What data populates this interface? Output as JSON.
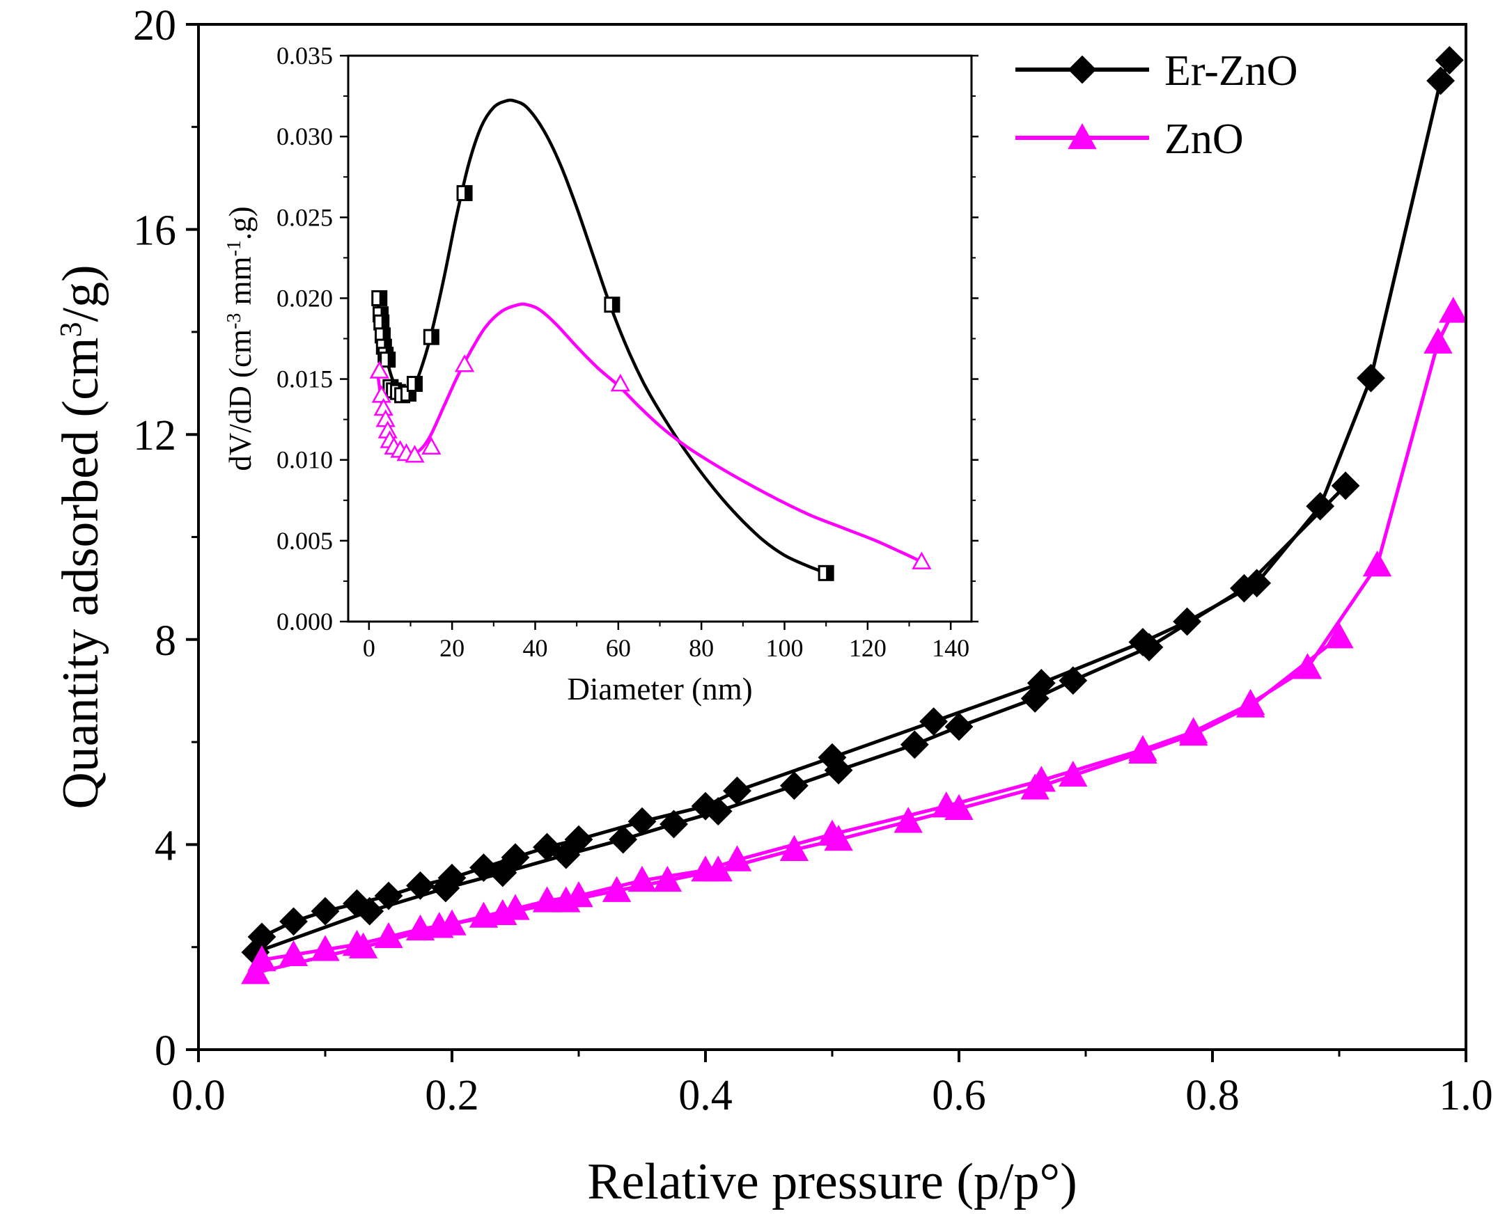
{
  "chart_data": [
    {
      "type": "line",
      "panel": "main",
      "title": "",
      "xlabel": "Relative pressure (p/p°)",
      "ylabel_parts": [
        "Quantity adsorbed (cm",
        "3",
        "/g)"
      ],
      "xlim": [
        0.0,
        1.0
      ],
      "ylim": [
        0,
        20
      ],
      "xticks": [
        0.0,
        0.2,
        0.4,
        0.6,
        0.8,
        1.0
      ],
      "xtick_labels": [
        "0.0",
        "0.2",
        "0.4",
        "0.6",
        "0.8",
        "1.0"
      ],
      "yticks": [
        0,
        4,
        8,
        12,
        16,
        20
      ],
      "ytick_labels": [
        "0",
        "4",
        "8",
        "12",
        "16",
        "20"
      ],
      "grid": false,
      "legend_position": "top-right",
      "series": [
        {
          "name": "Er-ZnO",
          "color": "#000000",
          "marker": "diamond",
          "branches": [
            {
              "x": [
                0.05,
                0.075,
                0.1,
                0.125,
                0.15,
                0.175,
                0.2,
                0.225,
                0.25,
                0.275,
                0.3,
                0.35,
                0.4,
                0.425,
                0.5,
                0.58,
                0.665,
                0.745,
                0.78,
                0.835,
                0.885,
                0.925,
                0.98,
                0.987
              ],
              "y": [
                2.2,
                2.5,
                2.7,
                2.85,
                3.0,
                3.2,
                3.35,
                3.55,
                3.75,
                3.95,
                4.1,
                4.45,
                4.75,
                5.05,
                5.7,
                6.4,
                7.15,
                7.95,
                8.35,
                9.1,
                10.6,
                13.1,
                18.9,
                19.3
              ]
            },
            {
              "x": [
                0.045,
                0.135,
                0.195,
                0.24,
                0.29,
                0.335,
                0.375,
                0.41,
                0.47,
                0.505,
                0.565,
                0.6,
                0.66,
                0.69,
                0.75,
                0.825,
                0.905
              ],
              "y": [
                1.9,
                2.7,
                3.15,
                3.45,
                3.8,
                4.1,
                4.4,
                4.65,
                5.15,
                5.45,
                5.95,
                6.3,
                6.85,
                7.2,
                7.85,
                9.0,
                11.0
              ]
            }
          ]
        },
        {
          "name": "ZnO",
          "color": "#ff00ff",
          "marker": "triangle",
          "branches": [
            {
              "x": [
                0.05,
                0.075,
                0.1,
                0.125,
                0.15,
                0.175,
                0.2,
                0.225,
                0.25,
                0.275,
                0.3,
                0.35,
                0.4,
                0.425,
                0.5,
                0.59,
                0.665,
                0.745,
                0.785,
                0.83,
                0.875,
                0.93,
                0.978,
                0.99
              ],
              "y": [
                1.75,
                1.85,
                1.95,
                2.05,
                2.2,
                2.35,
                2.45,
                2.6,
                2.75,
                2.9,
                3.0,
                3.3,
                3.5,
                3.7,
                4.2,
                4.75,
                5.25,
                5.85,
                6.2,
                6.75,
                7.45,
                9.45,
                13.8,
                14.4
              ]
            },
            {
              "x": [
                0.045,
                0.13,
                0.19,
                0.24,
                0.29,
                0.33,
                0.37,
                0.41,
                0.47,
                0.505,
                0.56,
                0.6,
                0.66,
                0.69,
                0.745,
                0.785,
                0.83,
                0.9
              ],
              "y": [
                1.5,
                2.0,
                2.4,
                2.65,
                2.9,
                3.1,
                3.3,
                3.5,
                3.9,
                4.1,
                4.45,
                4.7,
                5.1,
                5.35,
                5.8,
                6.15,
                6.7,
                8.05
              ]
            }
          ]
        }
      ]
    },
    {
      "type": "line",
      "panel": "inset",
      "title": "",
      "xlabel": "Diameter (nm)",
      "ylabel_parts": [
        "dV/dD (cm",
        "-3",
        " mm",
        "-1",
        ".g)"
      ],
      "xlim": [
        -5,
        145
      ],
      "ylim": [
        0.0,
        0.035
      ],
      "xticks": [
        0,
        20,
        40,
        60,
        80,
        100,
        120,
        140
      ],
      "xtick_labels": [
        "0",
        "20",
        "40",
        "60",
        "80",
        "100",
        "120",
        "140"
      ],
      "yticks": [
        0.0,
        0.005,
        0.01,
        0.015,
        0.02,
        0.025,
        0.03,
        0.035
      ],
      "ytick_labels": [
        "0.000",
        "0.005",
        "0.010",
        "0.015",
        "0.020",
        "0.025",
        "0.030",
        "0.035"
      ],
      "grid": false,
      "series": [
        {
          "name": "Er-ZnO",
          "color": "#000000",
          "marker": "half-filled-square",
          "markers": {
            "x": [
              2.5,
              2.8,
              3.0,
              3.3,
              3.6,
              4.0,
              4.5,
              5.2,
              6.0,
              7.0,
              8.0,
              9.5,
              11.0,
              15.0,
              23.0,
              58.5,
              110.0
            ],
            "y": [
              0.02,
              0.019,
              0.0185,
              0.0177,
              0.017,
              0.0165,
              0.0162,
              0.0145,
              0.0143,
              0.0142,
              0.014,
              0.0141,
              0.0147,
              0.0176,
              0.0265,
              0.0196,
              0.003
            ]
          },
          "curve": {
            "x": [
              2.0,
              3.5,
              5.0,
              7.0,
              9.0,
              11.0,
              13.0,
              15.0,
              18.0,
              21.0,
              24.0,
              27.0,
              30.0,
              33.0,
              35.0,
              38.0,
              42.0,
              46.0,
              50.0,
              54.0,
              58.0,
              62.0,
              66.0,
              70.0,
              75.0,
              80.0,
              85.0,
              90.0,
              95.0,
              100.0,
              105.0,
              110.0
            ],
            "y": [
              0.02,
              0.0175,
              0.0155,
              0.0143,
              0.014,
              0.0146,
              0.016,
              0.0178,
              0.0212,
              0.025,
              0.0283,
              0.0306,
              0.0318,
              0.0322,
              0.0322,
              0.0318,
              0.0304,
              0.0283,
              0.0256,
              0.0226,
              0.0196,
              0.017,
              0.0148,
              0.013,
              0.011,
              0.0092,
              0.0076,
              0.0062,
              0.005,
              0.0041,
              0.0035,
              0.003
            ]
          }
        },
        {
          "name": "ZnO",
          "color": "#ff00ff",
          "marker": "hollow-triangle",
          "markers": {
            "x": [
              2.5,
              3.0,
              3.5,
              4.0,
              4.5,
              5.0,
              6.0,
              7.5,
              9.0,
              11.0,
              15.0,
              23.0,
              60.5,
              133.0
            ],
            "y": [
              0.0155,
              0.014,
              0.0132,
              0.0125,
              0.0118,
              0.0112,
              0.0108,
              0.0106,
              0.0104,
              0.0103,
              0.0108,
              0.0159,
              0.0147,
              0.0037
            ]
          },
          "curve": {
            "x": [
              2.0,
              3.5,
              5.0,
              7.0,
              9.0,
              11.0,
              13.0,
              15.0,
              18.0,
              21.0,
              24.0,
              28.0,
              32.0,
              36.0,
              38.0,
              41.0,
              45.0,
              50.0,
              55.0,
              60.0,
              65.0,
              70.0,
              76.0,
              82.0,
              90.0,
              98.0,
              106.0,
              114.0,
              122.0,
              128.0,
              133.0
            ],
            "y": [
              0.0155,
              0.0128,
              0.0112,
              0.0106,
              0.0104,
              0.0104,
              0.0108,
              0.0116,
              0.0133,
              0.015,
              0.0165,
              0.0182,
              0.0192,
              0.0196,
              0.0196,
              0.0193,
              0.0184,
              0.017,
              0.0157,
              0.0146,
              0.0133,
              0.0121,
              0.0109,
              0.0099,
              0.0087,
              0.0076,
              0.0066,
              0.0058,
              0.005,
              0.0043,
              0.0037
            ]
          }
        }
      ]
    }
  ]
}
